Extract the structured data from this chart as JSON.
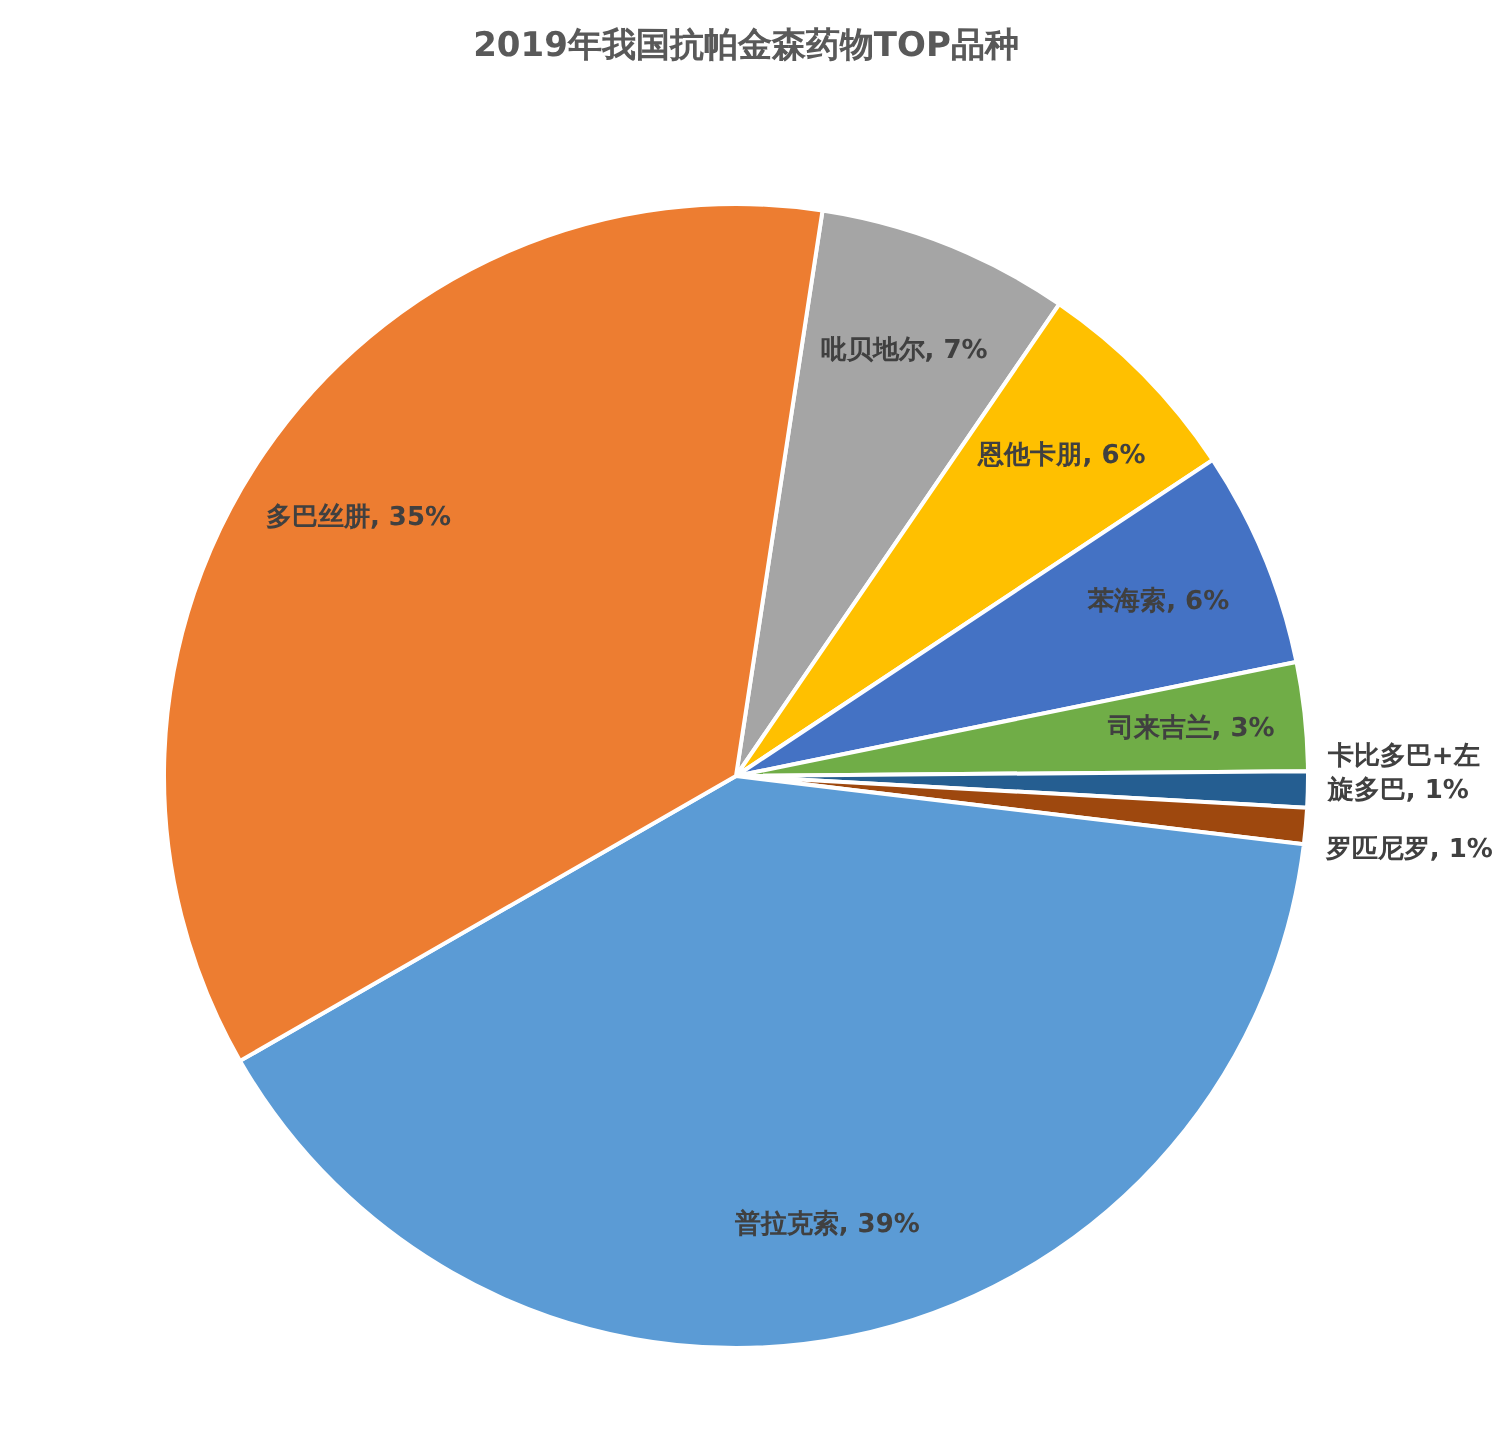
{
  "chart_data": {
    "type": "pie",
    "title": "2019年我国抗帕金森药物TOP品种",
    "categories": [
      "吡贝地尔",
      "恩他卡朋",
      "苯海索",
      "司来吉兰",
      "卡比多巴+左旋多巴",
      "罗匹尼罗",
      "普拉克索",
      "多巴丝肼"
    ],
    "values": [
      7,
      6,
      6,
      3,
      1,
      1,
      39,
      35
    ],
    "value_labels": [
      "7%",
      "6%",
      "6%",
      "3%",
      "1%",
      "1%",
      "39%",
      "35%"
    ],
    "colors": [
      "#a5a5a5",
      "#ffc000",
      "#4472c4",
      "#70ad47",
      "#255e91",
      "#9e480e",
      "#5b9bd5",
      "#ed7d31"
    ],
    "legend": false
  }
}
